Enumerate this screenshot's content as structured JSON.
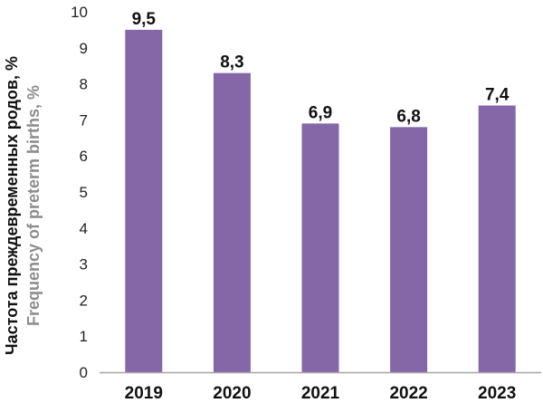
{
  "chart_data": {
    "type": "bar",
    "categories": [
      "2019",
      "2020",
      "2021",
      "2022",
      "2023"
    ],
    "values": [
      9.5,
      8.3,
      6.9,
      6.8,
      7.4
    ],
    "value_labels": [
      "9,5",
      "8,3",
      "6,9",
      "6,8",
      "7,4"
    ],
    "ylabel_ru": "Частота преждевременных родов, %",
    "ylabel_en": "Frequency of preterm births, %",
    "ylim": [
      0,
      10
    ],
    "yticks": [
      0,
      1,
      2,
      3,
      4,
      5,
      6,
      7,
      8,
      9,
      10
    ],
    "grid": false,
    "bar_color": "#8567a8",
    "axis_color": "#a6a6a6"
  }
}
